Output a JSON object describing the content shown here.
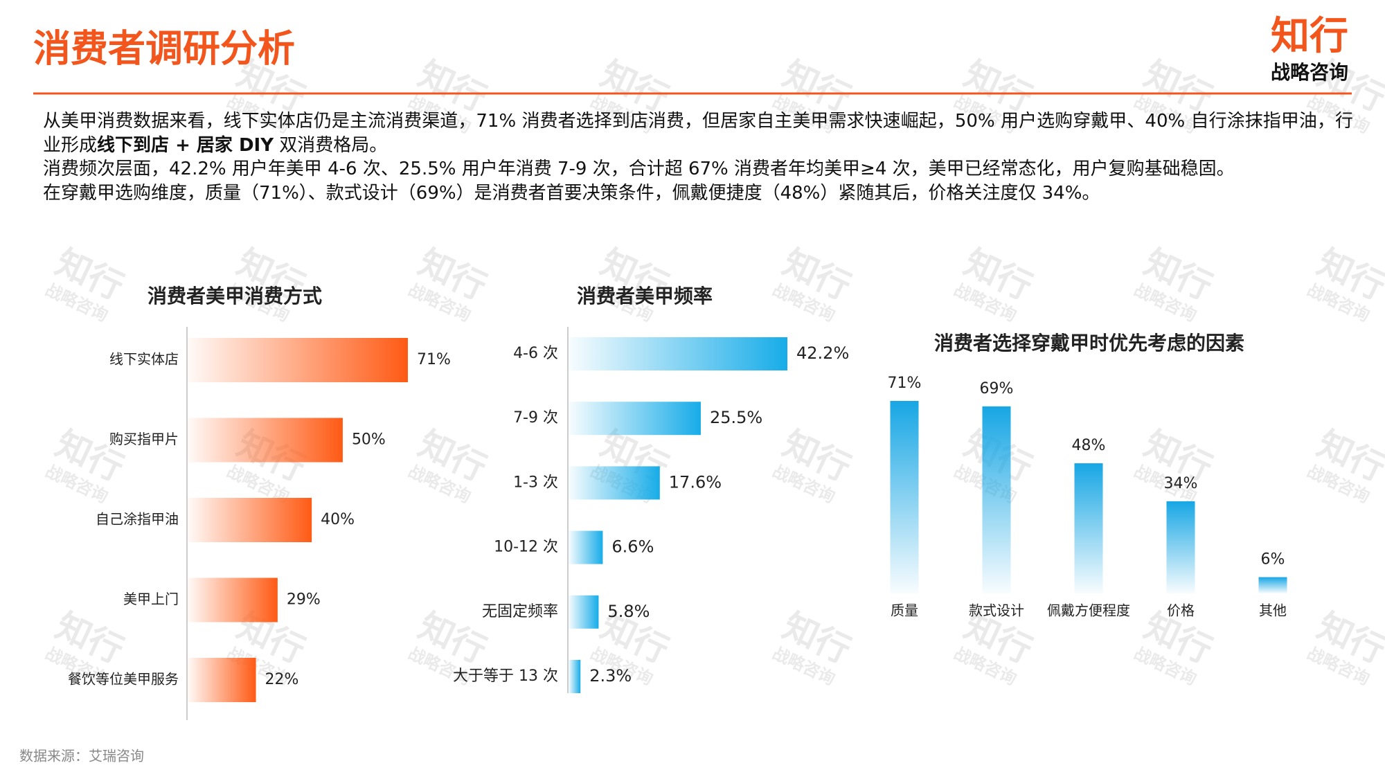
{
  "header": {
    "title": "消费者调研分析",
    "logo": "知行",
    "logo_sub": "战略咨询"
  },
  "paragraphs": [
    [
      {
        "text": "从美甲消费数据来看，线下实体店仍是主流消费渠道，71% 消费者选择到店消费，但居家自主美甲需求快速崛起，50% 用户选购穿戴甲、40% 自行涂抹指甲油，行业形成"
      },
      {
        "text": "线下到店 + 居家 DIY",
        "bold": true
      },
      {
        "text": " 双消费格局。"
      }
    ],
    [
      {
        "text": "消费频次层面，42.2% 用户年美甲 4-6 次、25.5% 用户年消费 7-9 次，合计超 67% 消费者年均美甲≥4 次，美甲已经常态化，用户复购基础稳固。"
      }
    ],
    [
      {
        "text": "在穿戴甲选购维度，质量（71%）、款式设计（69%）是消费者首要决策条件，佩戴便捷度（48%）紧随其后，价格关注度仅 34%。"
      }
    ]
  ],
  "watermark": [
    "知行",
    "战略咨询"
  ],
  "source": "数据来源：艾瑞咨询",
  "chart_data": [
    {
      "type": "hbar",
      "title": "消费者美甲消费方式",
      "color": "#ff5a14",
      "categories": [
        "线下实体店",
        "购买指甲片",
        "自己涂指甲油",
        "美甲上门",
        "餐饮等位美甲服务"
      ],
      "values": [
        71,
        50,
        40,
        29,
        22
      ],
      "value_labels": [
        "71%",
        "50%",
        "40%",
        "29%",
        "22%"
      ]
    },
    {
      "type": "hbar",
      "title": "消费者美甲频率",
      "color": "#17ace8",
      "categories": [
        "4-6 次",
        "7-9 次",
        "1-3 次",
        "10-12 次",
        "无固定频率",
        "大于等于 13 次"
      ],
      "values": [
        42.2,
        25.5,
        17.6,
        6.6,
        5.8,
        2.3
      ],
      "value_labels": [
        "42.2%",
        "25.5%",
        "17.6%",
        "6.6%",
        "5.8%",
        "2.3%"
      ]
    },
    {
      "type": "bar",
      "title": "消费者选择穿戴甲时优先考虑的因素",
      "color": "#17a6e4",
      "categories": [
        "质量",
        "款式设计",
        "佩戴方便程度",
        "价格",
        "其他"
      ],
      "values": [
        71,
        69,
        48,
        34,
        6
      ],
      "value_labels": [
        "71%",
        "69%",
        "48%",
        "34%",
        "6%"
      ]
    }
  ]
}
